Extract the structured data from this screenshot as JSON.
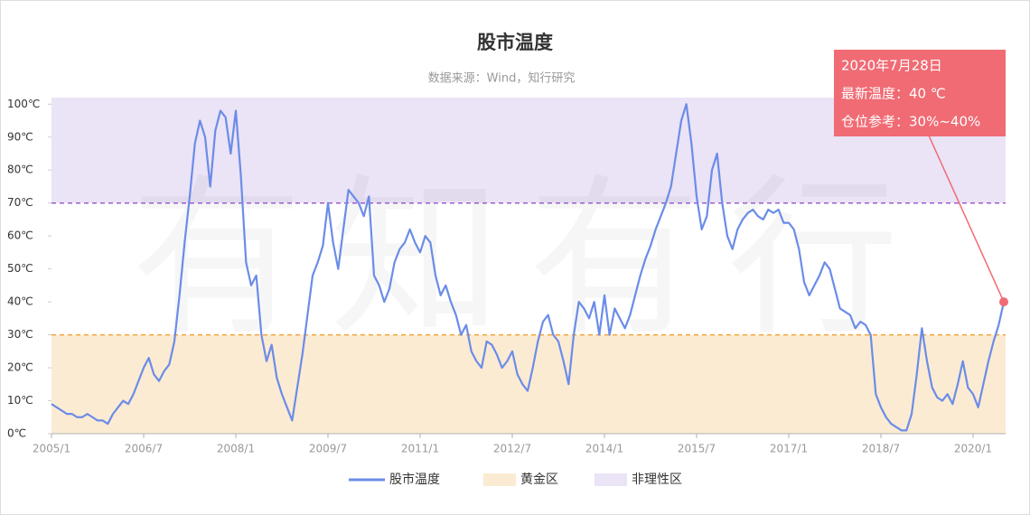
{
  "chart_data": {
    "type": "line",
    "title": "股市温度",
    "subtitle": "数据来源：Wind，知行研究",
    "watermark": "有知有行",
    "x": [
      "2005/1",
      "2005/2",
      "2005/3",
      "2005/4",
      "2005/5",
      "2005/6",
      "2005/7",
      "2005/8",
      "2005/9",
      "2005/10",
      "2005/11",
      "2005/12",
      "2006/1",
      "2006/2",
      "2006/3",
      "2006/4",
      "2006/5",
      "2006/6",
      "2006/7",
      "2006/8",
      "2006/9",
      "2006/10",
      "2006/11",
      "2006/12",
      "2007/1",
      "2007/2",
      "2007/3",
      "2007/4",
      "2007/5",
      "2007/6",
      "2007/7",
      "2007/8",
      "2007/9",
      "2007/10",
      "2007/11",
      "2007/12",
      "2008/1",
      "2008/2",
      "2008/3",
      "2008/4",
      "2008/5",
      "2008/6",
      "2008/7",
      "2008/8",
      "2008/9",
      "2008/10",
      "2008/11",
      "2008/12",
      "2009/1",
      "2009/2",
      "2009/3",
      "2009/4",
      "2009/5",
      "2009/6",
      "2009/7",
      "2009/8",
      "2009/9",
      "2009/10",
      "2009/11",
      "2009/12",
      "2010/1",
      "2010/2",
      "2010/3",
      "2010/4",
      "2010/5",
      "2010/6",
      "2010/7",
      "2010/8",
      "2010/9",
      "2010/10",
      "2010/11",
      "2010/12",
      "2011/1",
      "2011/2",
      "2011/3",
      "2011/4",
      "2011/5",
      "2011/6",
      "2011/7",
      "2011/8",
      "2011/9",
      "2011/10",
      "2011/11",
      "2011/12",
      "2012/1",
      "2012/2",
      "2012/3",
      "2012/4",
      "2012/5",
      "2012/6",
      "2012/7",
      "2012/8",
      "2012/9",
      "2012/10",
      "2012/11",
      "2012/12",
      "2013/1",
      "2013/2",
      "2013/3",
      "2013/4",
      "2013/5",
      "2013/6",
      "2013/7",
      "2013/8",
      "2013/9",
      "2013/10",
      "2013/11",
      "2013/12",
      "2014/1",
      "2014/2",
      "2014/3",
      "2014/4",
      "2014/5",
      "2014/6",
      "2014/7",
      "2014/8",
      "2014/9",
      "2014/10",
      "2014/11",
      "2014/12",
      "2015/1",
      "2015/2",
      "2015/3",
      "2015/4",
      "2015/5",
      "2015/6",
      "2015/7",
      "2015/8",
      "2015/9",
      "2015/10",
      "2015/11",
      "2015/12",
      "2016/1",
      "2016/2",
      "2016/3",
      "2016/4",
      "2016/5",
      "2016/6",
      "2016/7",
      "2016/8",
      "2016/9",
      "2016/10",
      "2016/11",
      "2016/12",
      "2017/1",
      "2017/2",
      "2017/3",
      "2017/4",
      "2017/5",
      "2017/6",
      "2017/7",
      "2017/8",
      "2017/9",
      "2017/10",
      "2017/11",
      "2017/12",
      "2018/1",
      "2018/2",
      "2018/3",
      "2018/4",
      "2018/5",
      "2018/6",
      "2018/7",
      "2018/8",
      "2018/9",
      "2018/10",
      "2018/11",
      "2018/12",
      "2019/1",
      "2019/2",
      "2019/3",
      "2019/4",
      "2019/5",
      "2019/6",
      "2019/7",
      "2019/8",
      "2019/9",
      "2019/10",
      "2019/11",
      "2019/12",
      "2020/1",
      "2020/2",
      "2020/3",
      "2020/4",
      "2020/5",
      "2020/6",
      "2020/7"
    ],
    "series": [
      {
        "name": "股市温度",
        "color": "#6b8ce8",
        "values": [
          9,
          8,
          7,
          6,
          6,
          5,
          5,
          6,
          5,
          4,
          4,
          3,
          6,
          8,
          10,
          9,
          12,
          16,
          20,
          23,
          18,
          16,
          19,
          21,
          28,
          42,
          58,
          72,
          88,
          95,
          90,
          75,
          92,
          98,
          96,
          85,
          98,
          78,
          52,
          45,
          48,
          30,
          22,
          27,
          17,
          12,
          8,
          4,
          14,
          24,
          36,
          48,
          52,
          57,
          70,
          58,
          50,
          62,
          74,
          72,
          70,
          66,
          72,
          48,
          45,
          40,
          44,
          52,
          56,
          58,
          62,
          58,
          55,
          60,
          58,
          48,
          42,
          45,
          40,
          36,
          30,
          33,
          25,
          22,
          20,
          28,
          27,
          24,
          20,
          22,
          25,
          18,
          15,
          13,
          20,
          28,
          34,
          36,
          30,
          28,
          22,
          15,
          30,
          40,
          38,
          35,
          40,
          30,
          42,
          30,
          38,
          35,
          32,
          36,
          42,
          48,
          53,
          57,
          62,
          66,
          70,
          75,
          85,
          95,
          100,
          88,
          72,
          62,
          66,
          80,
          85,
          70,
          60,
          56,
          62,
          65,
          67,
          68,
          66,
          65,
          68,
          67,
          68,
          64,
          64,
          62,
          56,
          46,
          42,
          45,
          48,
          52,
          50,
          44,
          38,
          37,
          36,
          32,
          34,
          33,
          30,
          12,
          8,
          5,
          3,
          2,
          1,
          1,
          6,
          18,
          32,
          22,
          14,
          11,
          10,
          12,
          9,
          15,
          22,
          14,
          12,
          8,
          15,
          22,
          28,
          33,
          40
        ]
      }
    ],
    "bands": [
      {
        "name": "黄金区",
        "color": "#fbebd3",
        "line_color": "#f2a23a",
        "from": 0,
        "to": 30
      },
      {
        "name": "非理性区",
        "color": "#ebe3f6",
        "line_color": "#9a5fd0",
        "from": 70,
        "to": 102
      }
    ],
    "ylim": [
      0,
      102
    ],
    "yticks": [
      {
        "value": 0,
        "label": "0℃"
      },
      {
        "value": 10,
        "label": "10℃"
      },
      {
        "value": 20,
        "label": "20℃"
      },
      {
        "value": 30,
        "label": "30℃"
      },
      {
        "value": 40,
        "label": "40℃"
      },
      {
        "value": 50,
        "label": "50℃"
      },
      {
        "value": 60,
        "label": "60℃"
      },
      {
        "value": 70,
        "label": "70℃"
      },
      {
        "value": 80,
        "label": "80℃"
      },
      {
        "value": 90,
        "label": "90℃"
      },
      {
        "value": 100,
        "label": "100℃"
      }
    ],
    "xticks": [
      "2005/1",
      "2006/7",
      "2008/1",
      "2009/7",
      "2011/1",
      "2012/7",
      "2014/1",
      "2015/7",
      "2017/1",
      "2018/7",
      "2020/1"
    ],
    "annotation": {
      "color": "#f06b74",
      "lines": [
        "2020年7月28日",
        "最新温度：40 ℃",
        "仓位参考：30%~40%"
      ]
    }
  }
}
